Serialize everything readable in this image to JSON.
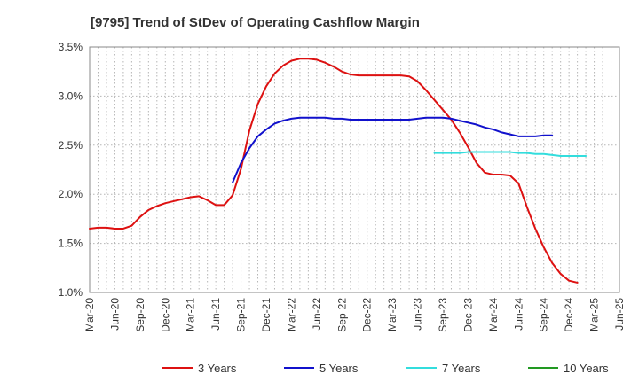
{
  "chart_data": {
    "type": "line",
    "title": "[9795]  Trend of StDev of Operating Cashflow Margin",
    "xlabel": "",
    "ylabel": "",
    "ylim": [
      1.0,
      3.5
    ],
    "y_ticks": [
      "1.0%",
      "1.5%",
      "2.0%",
      "2.5%",
      "3.0%",
      "3.5%"
    ],
    "y_tick_values": [
      1.0,
      1.5,
      2.0,
      2.5,
      3.0,
      3.5
    ],
    "x_ticks": [
      "Mar-20",
      "Jun-20",
      "Sep-20",
      "Dec-20",
      "Mar-21",
      "Jun-21",
      "Sep-21",
      "Dec-21",
      "Mar-22",
      "Jun-22",
      "Sep-22",
      "Dec-22",
      "Mar-23",
      "Jun-23",
      "Sep-23",
      "Dec-23",
      "Mar-24",
      "Jun-24",
      "Sep-24",
      "Dec-24",
      "Mar-25",
      "Jun-25"
    ],
    "x_start": "2020-03",
    "grid": true,
    "legend_position": "bottom",
    "series": [
      {
        "name": "3 Years",
        "color": "#dd1111",
        "start": "2020-03",
        "values": [
          1.65,
          1.66,
          1.66,
          1.65,
          1.65,
          1.68,
          1.77,
          1.84,
          1.88,
          1.91,
          1.93,
          1.95,
          1.97,
          1.98,
          1.94,
          1.89,
          1.89,
          1.99,
          2.26,
          2.65,
          2.92,
          3.1,
          3.23,
          3.31,
          3.36,
          3.38,
          3.38,
          3.37,
          3.34,
          3.3,
          3.25,
          3.22,
          3.21,
          3.21,
          3.21,
          3.21,
          3.21,
          3.21,
          3.2,
          3.15,
          3.06,
          2.96,
          2.86,
          2.76,
          2.63,
          2.48,
          2.32,
          2.22,
          2.2,
          2.2,
          2.19,
          2.11,
          1.87,
          1.65,
          1.46,
          1.3,
          1.19,
          1.12,
          1.1
        ]
      },
      {
        "name": "5 Years",
        "color": "#1111cc",
        "start": "2021-08",
        "values": [
          2.12,
          2.32,
          2.47,
          2.59,
          2.66,
          2.72,
          2.75,
          2.77,
          2.78,
          2.78,
          2.78,
          2.78,
          2.77,
          2.77,
          2.76,
          2.76,
          2.76,
          2.76,
          2.76,
          2.76,
          2.76,
          2.76,
          2.77,
          2.78,
          2.78,
          2.78,
          2.77,
          2.75,
          2.73,
          2.71,
          2.68,
          2.66,
          2.63,
          2.61,
          2.59,
          2.59,
          2.59,
          2.6,
          2.6
        ]
      },
      {
        "name": "7 Years",
        "color": "#33dddd",
        "start": "2023-08",
        "values": [
          2.42,
          2.42,
          2.42,
          2.42,
          2.43,
          2.43,
          2.43,
          2.43,
          2.43,
          2.43,
          2.42,
          2.42,
          2.41,
          2.41,
          2.4,
          2.39,
          2.39,
          2.39,
          2.39
        ]
      },
      {
        "name": "10 Years",
        "color": "#229922",
        "start": "2025-03",
        "values": []
      }
    ]
  }
}
